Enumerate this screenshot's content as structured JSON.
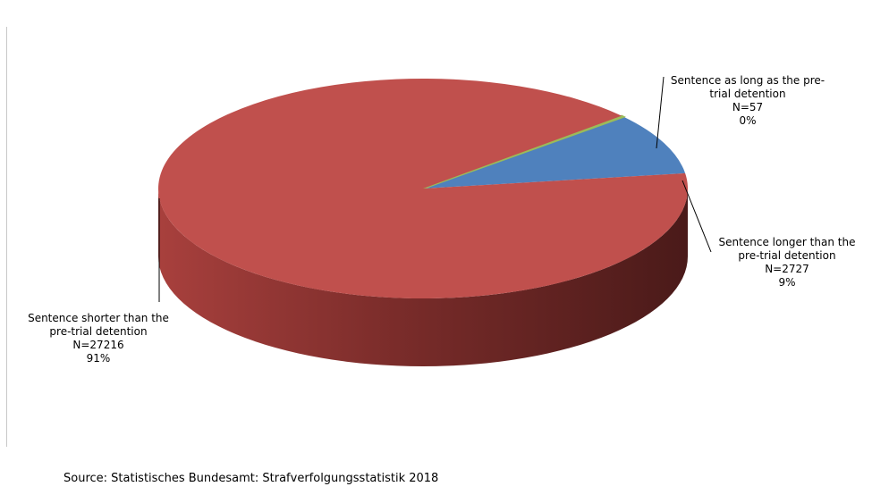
{
  "chart_data": {
    "type": "pie",
    "style": "3d",
    "slices": [
      {
        "key": "shorter",
        "name": "Sentence shorter than the pre-trial detention",
        "label_lines": [
          "Sentence shorter than the",
          "pre-trial detention"
        ],
        "n_label": "N=27216",
        "pct_label": "91%",
        "value": 27216,
        "color": "#C0504D"
      },
      {
        "key": "as_long",
        "name": "Sentence as long as the pre-trial detention",
        "label_lines": [
          "Sentence as long as the pre-",
          "trial detention"
        ],
        "n_label": "N=57",
        "pct_label": "0%",
        "value": 57,
        "color": "#9BBB59"
      },
      {
        "key": "longer",
        "name": "Sentence longer than the pre-trial detention",
        "label_lines": [
          "Sentence longer than the",
          "pre-trial detention"
        ],
        "n_label": "N=2727",
        "pct_label": "9%",
        "value": 2727,
        "color": "#4F81BD"
      }
    ]
  },
  "source_note": "Source: Statistisches Bundesamt: Strafverfolgungsstatistik 2018"
}
